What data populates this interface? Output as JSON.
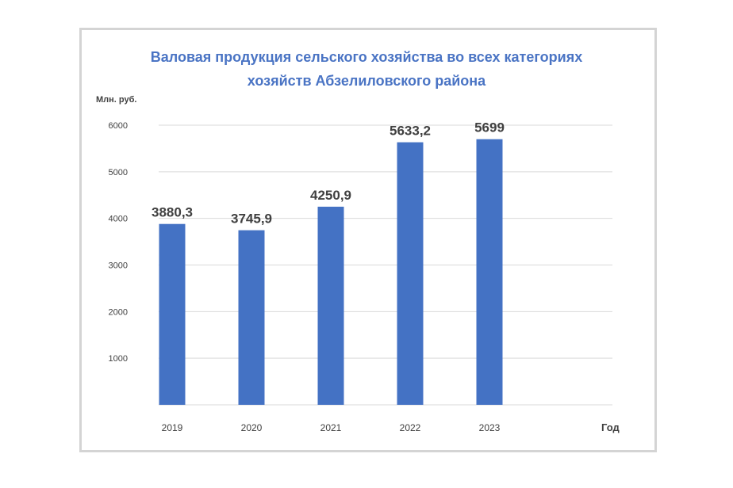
{
  "chart_data": {
    "type": "bar",
    "title_lines": [
      "Валовая продукция сельского хозяйства во всех категориях",
      "хозяйств Абзелиловского района"
    ],
    "ylabel": "Млн. руб.",
    "xlabel": "Год",
    "categories": [
      "2019",
      "2020",
      "2021",
      "2022",
      "2023"
    ],
    "values": [
      3880.3,
      3745.9,
      4250.9,
      5633.2,
      5699
    ],
    "data_labels": [
      "3880,3",
      "3745,9",
      "4250,9",
      "5633,2",
      "5699"
    ],
    "ylim": [
      0,
      6000
    ],
    "yticks": [
      1000,
      2000,
      3000,
      4000,
      5000,
      6000
    ],
    "grid": true,
    "legend": "none",
    "bar_color": "#4472c4",
    "title_color": "#4a74c4"
  }
}
